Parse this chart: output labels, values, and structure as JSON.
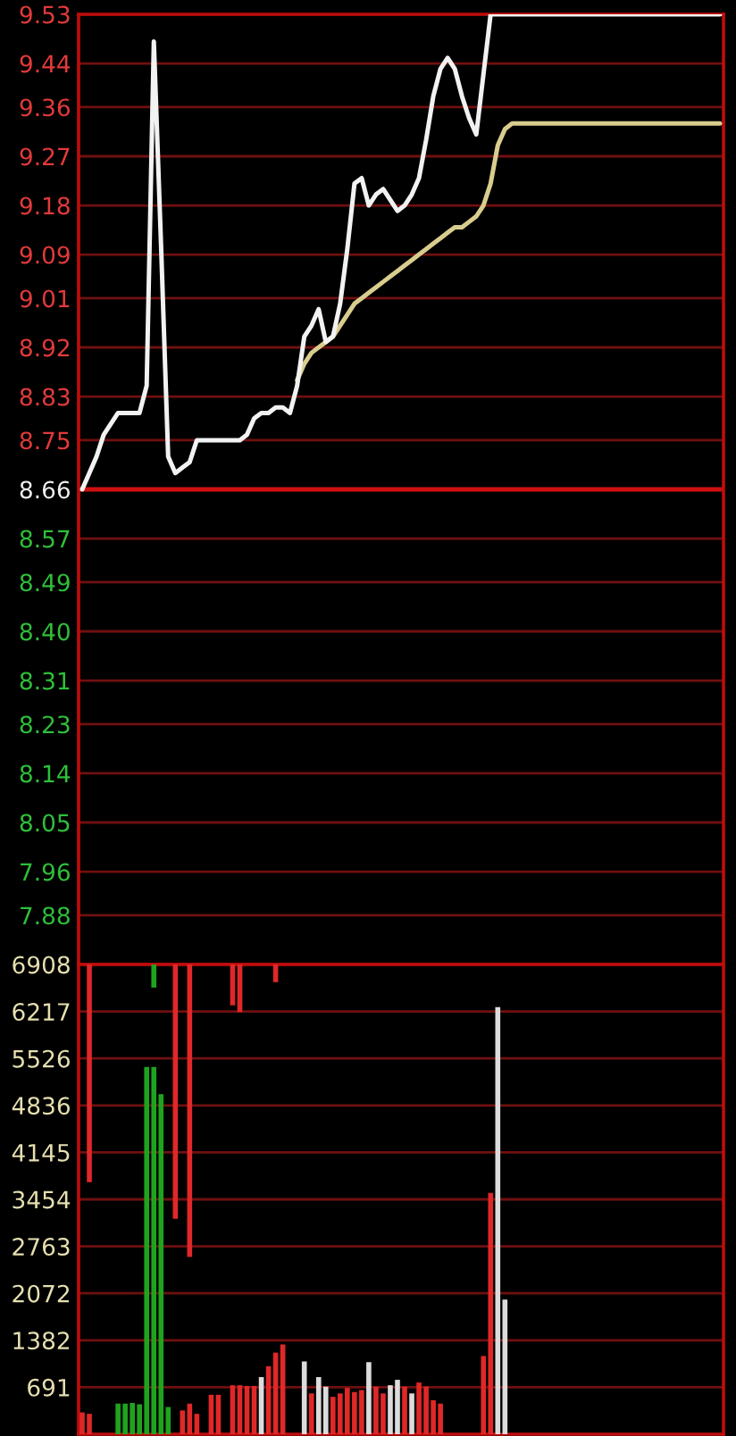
{
  "chart_data": [
    {
      "type": "line",
      "categories": [
        null,
        null,
        null,
        null,
        null,
        null,
        null,
        null,
        null,
        null,
        null,
        null,
        null,
        null,
        null,
        null,
        null,
        null,
        null,
        null,
        null,
        null,
        null,
        null,
        null,
        null,
        null,
        null,
        null,
        null,
        null,
        null,
        null,
        null,
        null,
        null,
        null,
        null,
        null,
        null,
        null,
        null,
        null,
        null,
        null,
        null,
        null,
        null,
        null,
        null,
        null,
        null,
        null,
        null,
        null,
        null,
        null,
        null,
        null,
        null,
        null,
        null,
        null,
        null,
        null,
        null,
        null,
        null,
        null,
        null,
        null,
        null,
        null,
        null,
        null,
        null,
        null,
        null,
        null,
        null,
        null,
        null,
        null,
        null,
        null,
        null,
        null,
        null,
        null,
        null
      ],
      "series": [
        {
          "color": "#d9cd8e",
          "values": [
            null,
            null,
            null,
            null,
            null,
            null,
            null,
            null,
            null,
            null,
            null,
            null,
            null,
            null,
            null,
            null,
            null,
            null,
            null,
            null,
            null,
            null,
            null,
            null,
            null,
            null,
            null,
            null,
            null,
            null,
            8.86,
            8.89,
            8.91,
            8.92,
            8.93,
            8.94,
            8.96,
            8.98,
            9.0,
            9.01,
            9.02,
            9.03,
            9.04,
            9.05,
            9.06,
            9.07,
            9.08,
            9.09,
            9.1,
            9.11,
            9.12,
            9.13,
            9.14,
            9.14,
            9.15,
            9.16,
            9.18,
            9.22,
            9.29,
            9.32,
            9.33,
            9.33,
            9.33,
            9.33,
            9.33,
            9.33,
            9.33,
            9.33,
            9.33,
            9.33,
            9.33,
            9.33,
            9.33,
            9.33,
            9.33,
            9.33,
            9.33,
            9.33,
            9.33,
            9.33,
            9.33,
            9.33,
            9.33,
            9.33,
            9.33,
            9.33,
            9.33,
            9.33,
            9.33,
            9.33
          ]
        },
        {
          "color": "#f2f2f2",
          "values": [
            8.66,
            8.69,
            8.72,
            8.76,
            8.78,
            8.8,
            8.8,
            8.8,
            8.8,
            8.85,
            9.48,
            9.11,
            8.72,
            8.69,
            8.7,
            8.71,
            8.75,
            8.75,
            8.75,
            8.75,
            8.75,
            8.75,
            8.75,
            8.76,
            8.79,
            8.8,
            8.8,
            8.81,
            8.81,
            8.8,
            8.85,
            8.94,
            8.96,
            8.99,
            8.93,
            8.94,
            9.0,
            9.1,
            9.22,
            9.23,
            9.18,
            9.2,
            9.21,
            9.19,
            9.17,
            9.18,
            9.2,
            9.23,
            9.3,
            9.38,
            9.43,
            9.45,
            9.43,
            9.38,
            9.34,
            9.31,
            9.42,
            9.53,
            9.53,
            9.53,
            9.53,
            9.53,
            9.53,
            9.53,
            9.53,
            9.53,
            9.53,
            9.53,
            9.53,
            9.53,
            9.53,
            9.53,
            9.53,
            9.53,
            9.53,
            9.53,
            9.53,
            9.53,
            9.53,
            9.53,
            9.53,
            9.53,
            9.53,
            9.53,
            9.53,
            9.53,
            9.53,
            9.53,
            9.53,
            9.53
          ]
        }
      ],
      "ylim": [
        7.79,
        9.53
      ],
      "yticks": [
        7.88,
        7.96,
        8.05,
        8.14,
        8.23,
        8.31,
        {
          "value": 8.4,
          "label": "8.40"
        },
        8.49,
        8.57,
        8.66,
        8.75,
        8.83,
        8.92,
        9.01,
        9.09,
        9.18,
        9.27,
        9.36,
        9.44,
        9.53
      ],
      "grid": "y",
      "tick_labels": "y",
      "ref_lines": [
        {
          "axis": "y",
          "value": 8.66,
          "color": "#d01010"
        }
      ]
    },
    {
      "type": "bar",
      "categories": [
        null,
        null,
        null,
        null,
        null,
        null,
        null,
        null,
        null,
        null,
        null,
        null,
        null,
        null,
        null,
        null,
        null,
        null,
        null,
        null,
        null,
        null,
        null,
        null,
        null,
        null,
        null,
        null,
        null,
        null,
        null,
        null,
        null,
        null,
        null,
        null,
        null,
        null,
        null,
        null,
        null,
        null,
        null,
        null,
        null,
        null,
        null,
        null,
        null,
        null,
        null,
        null,
        null,
        null,
        null,
        null,
        null,
        null,
        null,
        null,
        null,
        null,
        null,
        null,
        null,
        null,
        null,
        null,
        null,
        null,
        null,
        null,
        null,
        null,
        null,
        null,
        null,
        null,
        null,
        null,
        null,
        null,
        null,
        null,
        null,
        null,
        null,
        null,
        null,
        null
      ],
      "series": [
        {
          "values": [
            320,
            300,
            null,
            null,
            null,
            450,
            450,
            460,
            440,
            5400,
            5400,
            5000,
            400,
            null,
            350,
            450,
            300,
            null,
            580,
            580,
            null,
            720,
            720,
            710,
            710,
            840,
            1000,
            1200,
            1320,
            null,
            null,
            1070,
            600,
            840,
            700,
            550,
            600,
            680,
            620,
            650,
            1060,
            700,
            600,
            720,
            800,
            700,
            600,
            760,
            700,
            500,
            450,
            null,
            null,
            null,
            null,
            null,
            1150,
            3550,
            6280,
            1980,
            null,
            null,
            null,
            null,
            null,
            null,
            null,
            null,
            null,
            null,
            null,
            null,
            null,
            null,
            null,
            null,
            null,
            null,
            null,
            null,
            null,
            null,
            null,
            null,
            null,
            null,
            null,
            null,
            null,
            null
          ],
          "colors": [
            "#e02828",
            "#e02828",
            null,
            null,
            null,
            "#1fa31f",
            "#1fa31f",
            "#1fa31f",
            "#1fa31f",
            "#1fa31f",
            "#1fa31f",
            "#1fa31f",
            "#1fa31f",
            null,
            "#e02828",
            "#e02828",
            "#e02828",
            null,
            "#e02828",
            "#e02828",
            null,
            "#e02828",
            "#e02828",
            "#e02828",
            "#e02828",
            "#dcdcdc",
            "#e02828",
            "#e02828",
            "#e02828",
            null,
            null,
            "#dcdcdc",
            "#e02828",
            "#dcdcdc",
            "#dcdcdc",
            "#e02828",
            "#e02828",
            "#e02828",
            "#e02828",
            "#e02828",
            "#dcdcdc",
            "#e02828",
            "#e02828",
            "#dcdcdc",
            "#dcdcdc",
            "#e02828",
            "#dcdcdc",
            "#e02828",
            "#e02828",
            "#e02828",
            "#e02828",
            null,
            null,
            null,
            null,
            null,
            "#e02828",
            "#e02828",
            "#dcdcdc",
            "#dcdcdc",
            null,
            null,
            null,
            null,
            null,
            null,
            null,
            null,
            null,
            null,
            null,
            null,
            null,
            null,
            null,
            null,
            null,
            null,
            null,
            null,
            null,
            null,
            null,
            null,
            null,
            null,
            null,
            null,
            null,
            null
          ]
        },
        {
          "values": [
            null,
            -3200,
            null,
            null,
            null,
            null,
            null,
            null,
            null,
            null,
            -340,
            null,
            null,
            -3740,
            null,
            -4300,
            null,
            null,
            null,
            null,
            null,
            -600,
            -700,
            null,
            null,
            null,
            null,
            -260,
            null,
            null,
            null,
            null,
            null,
            null,
            null,
            null,
            null,
            null,
            null,
            null,
            null,
            null,
            null,
            null,
            null,
            null,
            null,
            null,
            null,
            null,
            null,
            null,
            null,
            null,
            null,
            null,
            null,
            null,
            null,
            null,
            null,
            null,
            null,
            null,
            null,
            null,
            null,
            null,
            null,
            null,
            null,
            null,
            null,
            null,
            null,
            null,
            null,
            null,
            null,
            null,
            null,
            null,
            null,
            null,
            null,
            null,
            null,
            null,
            null,
            null
          ],
          "base": [
            null,
            6908,
            null,
            null,
            null,
            null,
            null,
            null,
            null,
            null,
            6908,
            null,
            null,
            6908,
            null,
            6908,
            null,
            null,
            null,
            null,
            null,
            6908,
            6908,
            null,
            null,
            null,
            null,
            6908,
            null,
            null,
            null,
            null,
            null,
            null,
            null,
            null,
            null,
            null,
            null,
            null,
            null,
            null,
            null,
            null,
            null,
            null,
            null,
            null,
            null,
            null,
            null,
            null,
            null,
            null,
            null,
            null,
            null,
            null,
            null,
            null,
            null,
            null,
            null,
            null,
            null,
            null,
            null,
            null,
            null,
            null,
            null,
            null,
            null,
            null,
            null,
            null,
            null,
            null,
            null,
            null,
            null,
            null,
            null,
            null,
            null,
            null,
            null,
            null,
            null,
            null
          ],
          "colors": [
            null,
            "#e02828",
            null,
            null,
            null,
            null,
            null,
            null,
            null,
            null,
            "#1fa31f",
            null,
            null,
            "#e02828",
            null,
            "#e02828",
            null,
            null,
            null,
            null,
            null,
            "#e02828",
            "#e02828",
            null,
            null,
            null,
            null,
            "#e02828",
            null,
            null,
            null,
            null,
            null,
            null,
            null,
            null,
            null,
            null,
            null,
            null,
            null,
            null,
            null,
            null,
            null,
            null,
            null,
            null,
            null,
            null,
            null,
            null,
            null,
            null,
            null,
            null,
            null,
            null,
            null,
            null,
            null,
            null,
            null,
            null,
            null,
            null,
            null,
            null,
            null,
            null,
            null,
            null,
            null,
            null,
            null,
            null,
            null,
            null,
            null,
            null,
            null,
            null,
            null,
            null,
            null,
            null,
            null,
            null,
            null,
            null
          ]
        }
      ],
      "ylim": [
        0,
        6908
      ],
      "yticks": [
        691,
        1382,
        2072,
        2763,
        3454,
        4145,
        4836,
        5526,
        6217,
        6908
      ],
      "grid": "y",
      "tick_labels": "y"
    }
  ]
}
